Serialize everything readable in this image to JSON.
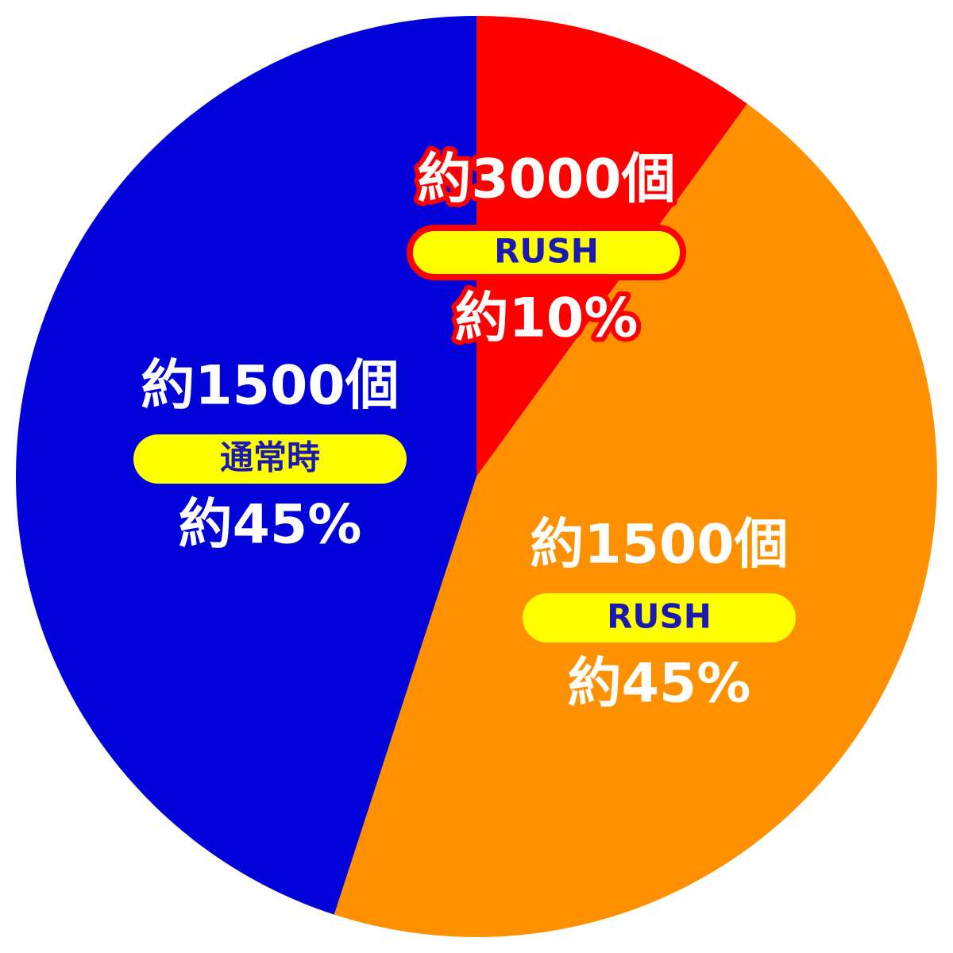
{
  "chart_data": {
    "type": "pie",
    "categories": [
      "RUSH",
      "RUSH",
      "通常時"
    ],
    "values": [
      10,
      45,
      45
    ],
    "value_labels": [
      "約10%",
      "約45%",
      "約45%"
    ],
    "amount_labels": [
      "約3000個",
      "約1500個",
      "約1500個"
    ],
    "colors": [
      "#ff0000",
      "#ff9100",
      "#0000d8"
    ]
  }
}
